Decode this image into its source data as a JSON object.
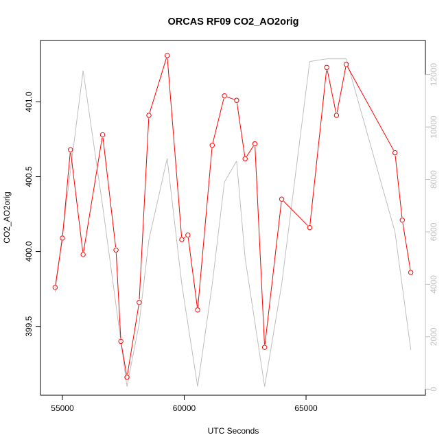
{
  "chart_data": {
    "type": "line",
    "title": "ORCAS RF09 CO2_AO2orig",
    "xlabel": "UTC Seconds",
    "ylabel": "CO2_AO2orig",
    "xlim": [
      54100,
      69900
    ],
    "ylim": [
      399.04,
      401.41
    ],
    "y2lim": [
      -230,
      13300
    ],
    "x_ticks": [
      55000,
      60000,
      65000
    ],
    "y_ticks": [
      399.5,
      400.0,
      400.5,
      401.0
    ],
    "y2_ticks": [
      0,
      2000,
      4000,
      6000,
      8000,
      10000,
      12000
    ],
    "colors": {
      "primary": "#ff0000",
      "secondary": "#bebebe",
      "axis": "#000000"
    },
    "series": [
      {
        "axis": "left",
        "style": "line+points",
        "x": [
          54700,
          55000,
          55330,
          55850,
          56650,
          57200,
          57400,
          57650,
          58150,
          58550,
          59300,
          59900,
          60150,
          60550,
          61150,
          61650,
          62150,
          62500,
          62900,
          63300,
          64000,
          65150,
          65850,
          66250,
          66650,
          68650,
          68950,
          69300
        ],
        "values": [
          399.76,
          400.09,
          400.68,
          399.98,
          400.78,
          400.01,
          399.4,
          399.16,
          399.66,
          400.91,
          401.31,
          400.08,
          400.11,
          399.61,
          400.71,
          401.04,
          401.01,
          400.62,
          400.72,
          399.36,
          400.35,
          400.16,
          401.23,
          400.91,
          401.25,
          400.66,
          400.21,
          399.86
        ]
      },
      {
        "axis": "right",
        "style": "line",
        "x": [
          54700,
          55850,
          56650,
          57650,
          58150,
          58550,
          59300,
          59900,
          60550,
          61150,
          61650,
          62150,
          62500,
          63300,
          64000,
          65150,
          65850,
          66250,
          66650,
          68650,
          69300
        ],
        "values": [
          3700,
          12150,
          7000,
          100,
          2500,
          5700,
          8800,
          4000,
          100,
          4000,
          7900,
          8700,
          5000,
          100,
          4000,
          12500,
          12600,
          12600,
          12600,
          6000,
          1500
        ]
      }
    ]
  }
}
